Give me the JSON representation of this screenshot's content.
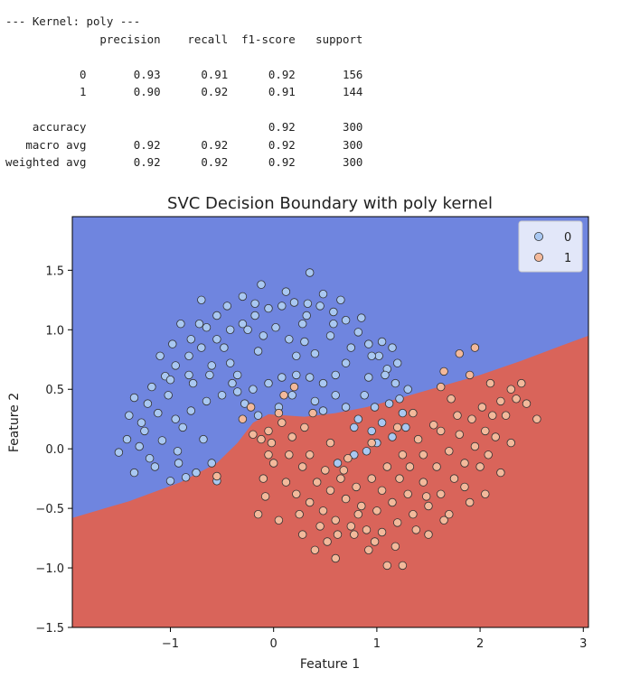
{
  "report": {
    "lines": [
      "--- Kernel: poly ---",
      "              precision    recall  f1-score   support",
      "",
      "           0       0.93      0.91      0.92       156",
      "           1       0.90      0.92      0.91       144",
      "",
      "    accuracy                           0.92       300",
      "   macro avg       0.92      0.92      0.92       300",
      "weighted avg       0.92      0.92      0.92       300"
    ]
  },
  "chart_data": {
    "type": "scatter",
    "title": "SVC Decision Boundary with poly kernel",
    "xlabel": "Feature 1",
    "ylabel": "Feature 2",
    "xlim": [
      -1.95,
      3.05
    ],
    "ylim": [
      -1.5,
      1.95
    ],
    "xticks": [
      -1,
      0,
      1,
      2,
      3
    ],
    "yticks": [
      -1.5,
      -1.0,
      -0.5,
      0.0,
      0.5,
      1.0,
      1.5
    ],
    "xtick_labels": [
      "−1",
      "0",
      "1",
      "2",
      "3"
    ],
    "ytick_labels": [
      "−1.5",
      "−1.0",
      "−0.5",
      "0.0",
      "0.5",
      "1.0",
      "1.5"
    ],
    "legend": {
      "placement": "top-right",
      "entries": [
        "0",
        "1"
      ]
    },
    "colors": {
      "region_0": "#6f85df",
      "region_1": "#d9645a",
      "class_0": "#a9c8f2",
      "class_1": "#f3b99b",
      "edge": "#333333"
    },
    "boundary": [
      [
        -1.95,
        -0.58
      ],
      [
        -1.4,
        -0.44
      ],
      [
        -0.9,
        -0.28
      ],
      [
        -0.55,
        -0.12
      ],
      [
        -0.35,
        0.05
      ],
      [
        -0.2,
        0.22
      ],
      [
        -0.05,
        0.29
      ],
      [
        0.3,
        0.27
      ],
      [
        0.6,
        0.3
      ],
      [
        0.9,
        0.35
      ],
      [
        1.2,
        0.42
      ],
      [
        1.6,
        0.52
      ],
      [
        2.0,
        0.62
      ],
      [
        2.4,
        0.74
      ],
      [
        2.8,
        0.87
      ],
      [
        3.05,
        0.95
      ]
    ],
    "series": [
      {
        "name": "0",
        "points": [
          [
            -1.5,
            -0.03
          ],
          [
            -1.3,
            0.02
          ],
          [
            -1.2,
            -0.08
          ],
          [
            -1.0,
            -0.27
          ],
          [
            -0.85,
            -0.24
          ],
          [
            -0.75,
            -0.2
          ],
          [
            -0.6,
            -0.12
          ],
          [
            -0.55,
            -0.27
          ],
          [
            -0.93,
            -0.02
          ],
          [
            -1.08,
            0.07
          ],
          [
            -1.25,
            0.15
          ],
          [
            -1.4,
            0.28
          ],
          [
            -1.35,
            0.43
          ],
          [
            -1.18,
            0.52
          ],
          [
            -1.05,
            0.61
          ],
          [
            -0.95,
            0.7
          ],
          [
            -0.82,
            0.78
          ],
          [
            -0.7,
            0.85
          ],
          [
            -0.55,
            0.92
          ],
          [
            -0.42,
            1.0
          ],
          [
            -0.3,
            1.05
          ],
          [
            -0.18,
            1.12
          ],
          [
            -0.05,
            1.18
          ],
          [
            0.08,
            1.2
          ],
          [
            0.2,
            1.23
          ],
          [
            0.33,
            1.22
          ],
          [
            0.45,
            1.2
          ],
          [
            0.58,
            1.15
          ],
          [
            0.7,
            1.08
          ],
          [
            0.82,
            0.98
          ],
          [
            0.92,
            0.88
          ],
          [
            1.02,
            0.78
          ],
          [
            1.1,
            0.67
          ],
          [
            1.18,
            0.55
          ],
          [
            1.22,
            0.42
          ],
          [
            1.25,
            0.3
          ],
          [
            1.28,
            0.18
          ],
          [
            1.15,
            0.1
          ],
          [
            0.95,
            0.15
          ],
          [
            0.82,
            0.25
          ],
          [
            0.7,
            0.35
          ],
          [
            0.6,
            0.45
          ],
          [
            0.48,
            0.55
          ],
          [
            0.35,
            0.6
          ],
          [
            0.22,
            0.62
          ],
          [
            0.08,
            0.6
          ],
          [
            -0.05,
            0.55
          ],
          [
            -0.2,
            0.5
          ],
          [
            -0.35,
            0.48
          ],
          [
            -0.5,
            0.45
          ],
          [
            -0.65,
            0.4
          ],
          [
            -0.8,
            0.32
          ],
          [
            -0.95,
            0.25
          ],
          [
            -1.12,
            0.3
          ],
          [
            -1.22,
            0.38
          ],
          [
            -0.3,
            1.28
          ],
          [
            -0.7,
            1.25
          ],
          [
            0.35,
            1.48
          ],
          [
            -0.9,
            1.05
          ],
          [
            -0.62,
            0.62
          ],
          [
            -0.78,
            0.55
          ],
          [
            -1.02,
            0.45
          ],
          [
            0.55,
            0.95
          ],
          [
            0.75,
            0.85
          ],
          [
            1.05,
            0.9
          ],
          [
            0.92,
            0.6
          ],
          [
            0.88,
            0.45
          ],
          [
            1.12,
            0.38
          ],
          [
            0.15,
            0.92
          ],
          [
            -0.15,
            0.82
          ],
          [
            -0.42,
            0.72
          ],
          [
            0.4,
            0.8
          ],
          [
            0.28,
            1.05
          ],
          [
            0.02,
            1.02
          ],
          [
            -0.25,
            1.0
          ],
          [
            -0.55,
            1.12
          ],
          [
            0.65,
            1.25
          ],
          [
            -0.48,
            0.85
          ],
          [
            -0.82,
            0.62
          ],
          [
            1.0,
            0.05
          ],
          [
            0.78,
            -0.05
          ],
          [
            0.62,
            -0.12
          ],
          [
            0.9,
            -0.02
          ],
          [
            1.05,
            0.22
          ],
          [
            0.48,
            0.32
          ],
          [
            0.3,
            0.9
          ],
          [
            -0.1,
            0.95
          ],
          [
            -1.15,
            -0.15
          ],
          [
            -0.68,
            0.08
          ],
          [
            -0.88,
            0.18
          ],
          [
            -1.35,
            -0.2
          ],
          [
            -0.72,
            1.05
          ],
          [
            -0.35,
            0.62
          ],
          [
            0.12,
            1.32
          ],
          [
            0.48,
            1.3
          ],
          [
            0.7,
            0.72
          ],
          [
            1.15,
            0.85
          ],
          [
            1.3,
            0.5
          ],
          [
            -0.98,
            0.88
          ],
          [
            -0.6,
            0.7
          ],
          [
            0.85,
            1.1
          ],
          [
            -1.1,
            0.78
          ],
          [
            0.22,
            0.78
          ],
          [
            -0.28,
            0.38
          ],
          [
            -0.15,
            0.28
          ],
          [
            0.05,
            0.35
          ],
          [
            0.4,
            0.4
          ],
          [
            0.98,
            0.35
          ],
          [
            -0.45,
            1.2
          ],
          [
            -0.12,
            1.38
          ],
          [
            0.58,
            1.05
          ],
          [
            1.2,
            0.72
          ],
          [
            -1.28,
            0.22
          ],
          [
            -0.8,
            0.92
          ],
          [
            -0.4,
            0.55
          ],
          [
            0.18,
            0.45
          ],
          [
            0.78,
            0.18
          ],
          [
            1.08,
            0.62
          ],
          [
            -1.42,
            0.08
          ],
          [
            -0.92,
            -0.12
          ],
          [
            -0.18,
            1.22
          ],
          [
            0.6,
            0.62
          ],
          [
            0.95,
            0.78
          ],
          [
            -0.65,
            1.02
          ],
          [
            -1.0,
            0.58
          ],
          [
            0.32,
            1.12
          ]
        ]
      },
      {
        "name": "1",
        "points": [
          [
            -0.55,
            -0.23
          ],
          [
            -0.3,
            0.25
          ],
          [
            -0.12,
            0.08
          ],
          [
            0.0,
            -0.12
          ],
          [
            0.12,
            -0.28
          ],
          [
            0.22,
            -0.38
          ],
          [
            0.35,
            -0.45
          ],
          [
            0.48,
            -0.52
          ],
          [
            0.6,
            -0.6
          ],
          [
            0.75,
            -0.65
          ],
          [
            0.9,
            -0.68
          ],
          [
            1.05,
            -0.7
          ],
          [
            1.2,
            -0.62
          ],
          [
            1.35,
            -0.55
          ],
          [
            1.5,
            -0.48
          ],
          [
            1.62,
            -0.38
          ],
          [
            1.75,
            -0.25
          ],
          [
            1.85,
            -0.12
          ],
          [
            1.95,
            0.02
          ],
          [
            2.05,
            0.15
          ],
          [
            2.12,
            0.28
          ],
          [
            2.2,
            0.4
          ],
          [
            2.3,
            0.5
          ],
          [
            2.4,
            0.55
          ],
          [
            2.55,
            0.25
          ],
          [
            2.35,
            0.42
          ],
          [
            1.8,
            0.8
          ],
          [
            1.95,
            0.85
          ],
          [
            1.65,
            0.65
          ],
          [
            0.2,
            0.52
          ],
          [
            0.05,
            0.3
          ],
          [
            -0.2,
            0.12
          ],
          [
            -0.05,
            -0.05
          ],
          [
            0.28,
            -0.15
          ],
          [
            0.42,
            -0.28
          ],
          [
            0.55,
            -0.35
          ],
          [
            0.7,
            -0.42
          ],
          [
            0.85,
            -0.48
          ],
          [
            1.0,
            -0.52
          ],
          [
            1.15,
            -0.45
          ],
          [
            1.3,
            -0.38
          ],
          [
            1.45,
            -0.28
          ],
          [
            1.58,
            -0.15
          ],
          [
            1.7,
            -0.02
          ],
          [
            1.8,
            0.12
          ],
          [
            1.92,
            0.25
          ],
          [
            2.02,
            0.35
          ],
          [
            1.55,
            0.2
          ],
          [
            1.4,
            0.08
          ],
          [
            1.25,
            -0.05
          ],
          [
            1.1,
            -0.15
          ],
          [
            0.95,
            -0.25
          ],
          [
            0.8,
            -0.32
          ],
          [
            0.65,
            -0.25
          ],
          [
            0.5,
            -0.18
          ],
          [
            0.35,
            -0.05
          ],
          [
            0.18,
            0.1
          ],
          [
            0.08,
            0.22
          ],
          [
            -0.1,
            -0.25
          ],
          [
            -0.08,
            -0.4
          ],
          [
            -0.15,
            -0.55
          ],
          [
            0.05,
            -0.6
          ],
          [
            0.4,
            -0.85
          ],
          [
            0.6,
            -0.92
          ],
          [
            1.1,
            -0.98
          ],
          [
            1.25,
            -0.98
          ],
          [
            1.5,
            -0.72
          ],
          [
            1.9,
            -0.45
          ],
          [
            2.05,
            -0.38
          ],
          [
            2.2,
            -0.2
          ],
          [
            2.3,
            0.05
          ],
          [
            1.35,
            0.3
          ],
          [
            1.2,
            0.18
          ],
          [
            0.95,
            0.05
          ],
          [
            0.72,
            -0.08
          ],
          [
            0.3,
            0.18
          ],
          [
            2.1,
            0.55
          ],
          [
            1.72,
            0.42
          ],
          [
            1.62,
            0.15
          ],
          [
            1.45,
            -0.05
          ],
          [
            0.15,
            -0.05
          ],
          [
            -0.02,
            0.05
          ],
          [
            0.45,
            -0.65
          ],
          [
            0.28,
            -0.72
          ],
          [
            0.98,
            -0.78
          ],
          [
            1.18,
            -0.82
          ],
          [
            1.38,
            -0.68
          ],
          [
            1.7,
            -0.55
          ],
          [
            2.0,
            -0.15
          ],
          [
            0.62,
            -0.72
          ],
          [
            0.82,
            -0.55
          ],
          [
            1.05,
            -0.35
          ],
          [
            1.22,
            -0.25
          ],
          [
            1.48,
            -0.4
          ],
          [
            1.65,
            -0.6
          ],
          [
            1.85,
            -0.32
          ],
          [
            2.15,
            0.1
          ],
          [
            2.25,
            0.28
          ],
          [
            0.1,
            0.45
          ],
          [
            -0.22,
            0.35
          ],
          [
            0.38,
            0.3
          ],
          [
            0.25,
            -0.55
          ],
          [
            0.52,
            -0.78
          ],
          [
            0.78,
            -0.72
          ],
          [
            0.92,
            -0.85
          ],
          [
            1.62,
            0.52
          ],
          [
            1.9,
            0.62
          ],
          [
            2.45,
            0.38
          ],
          [
            -0.05,
            0.15
          ],
          [
            0.55,
            0.05
          ],
          [
            0.68,
            -0.18
          ],
          [
            1.32,
            -0.15
          ],
          [
            1.78,
            0.28
          ],
          [
            2.08,
            -0.05
          ]
        ]
      }
    ]
  }
}
